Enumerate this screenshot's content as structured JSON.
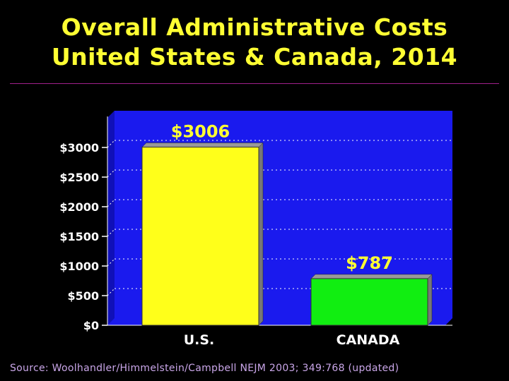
{
  "title": {
    "line1": "Overall Administrative Costs",
    "line2": "United States & Canada, 2014"
  },
  "source": "Source: Woolhandler/Himmelstein/Campbell NEJM 2003; 349:768 (updated)",
  "colors": {
    "background": "#000000",
    "plot_area": "#1a1aee",
    "title": "#ffff33",
    "bar_us": "#ffff1a",
    "bar_canada": "#11ee11",
    "data_label": "#ffff33"
  },
  "chart_data": {
    "type": "bar",
    "title": "Overall Administrative Costs United States & Canada, 2014",
    "categories": [
      "U.S.",
      "CANADA"
    ],
    "values": [
      3006,
      787
    ],
    "data_labels": [
      "$3006",
      "$787"
    ],
    "ylim": [
      0,
      3500
    ],
    "yticks": [
      0,
      500,
      1000,
      1500,
      2000,
      2500,
      3000
    ],
    "ytick_labels": [
      "$0",
      "$500",
      "$1000",
      "$1500",
      "$2000",
      "$2500",
      "$3000"
    ],
    "grid": true,
    "legend": "none",
    "xlabel": "",
    "ylabel": ""
  }
}
